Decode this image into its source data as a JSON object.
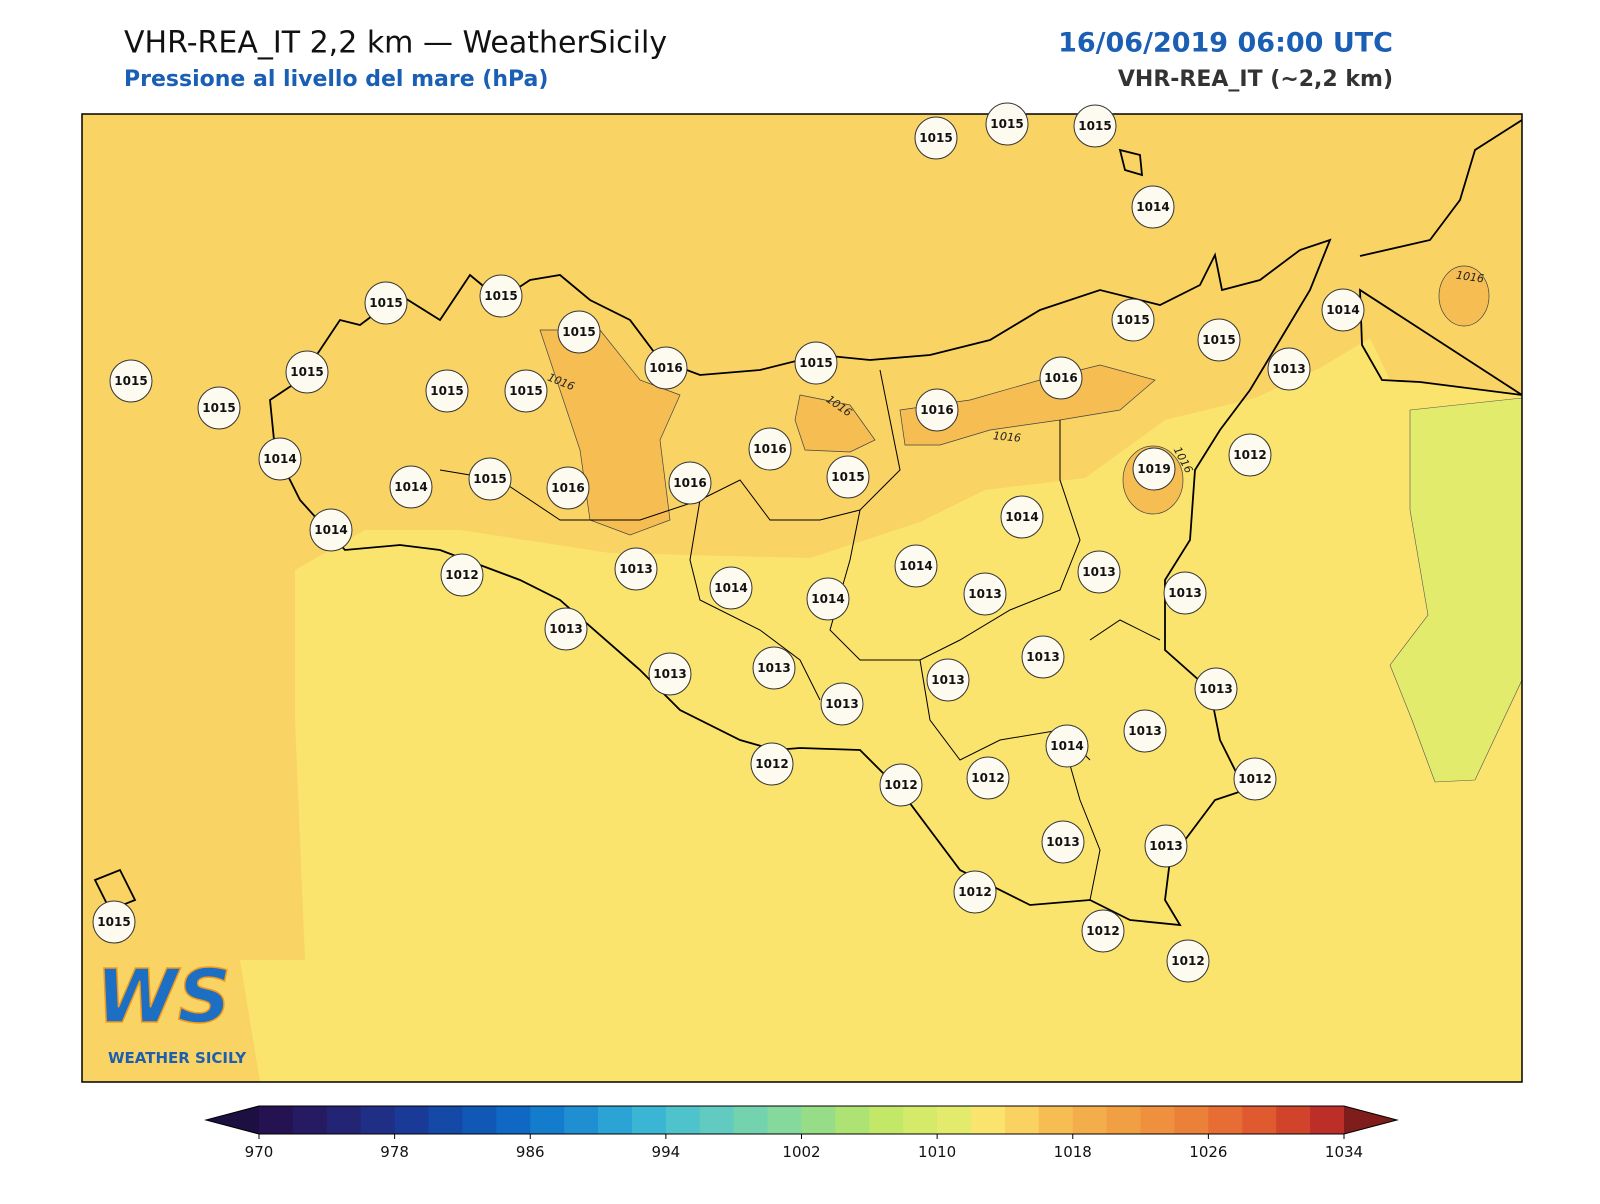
{
  "header": {
    "title": "VHR-REA_IT 2,2 km — WeatherSicily",
    "subtitle": "Pressione al livello del mare (hPa)",
    "datetime": "16/06/2019 06:00 UTC",
    "model": "VHR-REA_IT (~2,2 km)"
  },
  "logo": {
    "mark": "WS",
    "name": "WEATHER SICILY"
  },
  "stations": [
    1015,
    1015,
    1015,
    1014,
    1015,
    1015,
    1015,
    1016,
    1015,
    1015,
    1015,
    1015,
    1015,
    1015,
    1015,
    1015,
    1014,
    1013,
    1016,
    1016,
    1016,
    1014,
    1014,
    1015,
    1016,
    1016,
    1015,
    1019,
    1012,
    1014,
    1014,
    1012,
    1013,
    1014,
    1014,
    1014,
    1013,
    1013,
    1013,
    1013,
    1013,
    1013,
    1013,
    1013,
    1013,
    1013,
    1014,
    1013,
    1012,
    1012,
    1012,
    1012,
    1013,
    1013,
    1012,
    1012,
    1012,
    1015
  ],
  "contour_labels": [
    1016,
    1016,
    1016,
    1016,
    1016
  ],
  "colorbar": {
    "lim": [
      970,
      1034
    ],
    "ticks": [
      970,
      978,
      986,
      994,
      1002,
      1010,
      1018,
      1026,
      1034
    ],
    "colors": [
      "#241350",
      "#261b62",
      "#232474",
      "#1f2f86",
      "#1a3a97",
      "#1449a8",
      "#1158b6",
      "#0f69c4",
      "#137ccd",
      "#1f8fd2",
      "#2ba3d5",
      "#3ab6d4",
      "#4fc3cb",
      "#62cbbf",
      "#72d3ae",
      "#84d99b",
      "#97dd88",
      "#ade373",
      "#c3e766",
      "#d6ea6a",
      "#e3eb6c",
      "#fbe46e",
      "#fad262",
      "#f6bd52",
      "#f3ad4a",
      "#f0a043",
      "#ee903e",
      "#eb8038",
      "#e66d33",
      "#df5a2f",
      "#d1432b",
      "#bd2e28"
    ],
    "under": "#1e0f43",
    "over": "#7f1d1d"
  }
}
